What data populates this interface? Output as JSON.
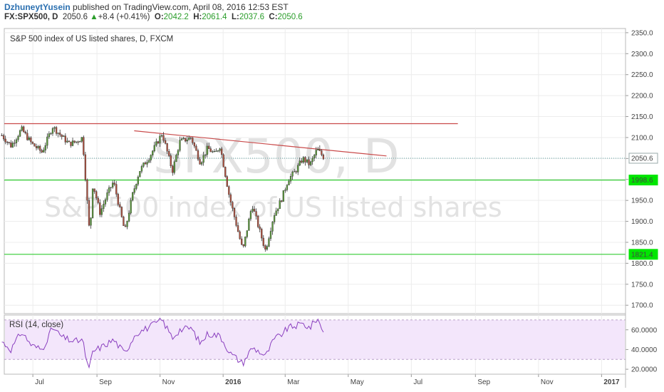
{
  "header": {
    "author": "DzhuneytYusein",
    "published": "published on TradingView.com, April 08, 2016 12:53 EST",
    "symbol": "FX:SPX500, D",
    "last": "2050.6",
    "change": "+8.4 (+0.41%)",
    "o_label": "O:",
    "o": "2042.2",
    "h_label": "H:",
    "h": "2061.4",
    "l_label": "L:",
    "l": "2037.6",
    "c_label": "C:",
    "c": "2050.6"
  },
  "chart_data": [
    {
      "type": "candlestick",
      "title": "S&P 500 index of US listed shares, D, FXCM",
      "watermark_line1": "SPX500, D",
      "watermark_line2": "S&P 500 index of US listed shares",
      "ylim": [
        1680,
        2360
      ],
      "yticks": [
        "2350.0",
        "2300.0",
        "2250.0",
        "2200.0",
        "2150.0",
        "2100.0",
        "2050.0",
        "2000.0",
        "1950.0",
        "1900.0",
        "1850.0",
        "1800.0",
        "1750.0",
        "1700.0"
      ],
      "x_labels": [
        "Jul",
        "Sep",
        "Nov",
        "2016",
        "Mar",
        "May",
        "Jul",
        "Sep",
        "Nov",
        "2017"
      ],
      "price_labels": [
        {
          "value": 2050.6,
          "label": "2050.6",
          "color": "#ffffff"
        },
        {
          "value": 1998.6,
          "label": "1998.6",
          "color": "#00e600"
        },
        {
          "value": 1821.4,
          "label": "1821.4",
          "color": "#00e600"
        }
      ],
      "horizontal_lines": [
        {
          "value": 1998.6,
          "color": "#33cc33"
        },
        {
          "value": 1821.4,
          "color": "#33cc33"
        },
        {
          "value": 2133,
          "color": "#c94a4a",
          "from": "2015-06-01",
          "to": "2016-08-15"
        }
      ],
      "trend_line": {
        "from_date": "2015-10-07",
        "from_value": 2116,
        "to_date": "2016-06-07",
        "to_value": 2056,
        "color": "#c94a4a"
      },
      "price_path": [
        [
          "2015-06-01",
          2105
        ],
        [
          "2015-06-10",
          2080
        ],
        [
          "2015-06-20",
          2120
        ],
        [
          "2015-06-30",
          2085
        ],
        [
          "2015-07-10",
          2065
        ],
        [
          "2015-07-20",
          2126
        ],
        [
          "2015-07-30",
          2100
        ],
        [
          "2015-08-05",
          2085
        ],
        [
          "2015-08-12",
          2090
        ],
        [
          "2015-08-18",
          2100
        ],
        [
          "2015-08-21",
          2000
        ],
        [
          "2015-08-25",
          1865
        ],
        [
          "2015-08-28",
          1990
        ],
        [
          "2015-09-04",
          1920
        ],
        [
          "2015-09-11",
          1965
        ],
        [
          "2015-09-17",
          1995
        ],
        [
          "2015-09-28",
          1875
        ],
        [
          "2015-10-05",
          1960
        ],
        [
          "2015-10-12",
          2020
        ],
        [
          "2015-10-22",
          2055
        ],
        [
          "2015-11-03",
          2110
        ],
        [
          "2015-11-13",
          2020
        ],
        [
          "2015-11-20",
          2090
        ],
        [
          "2015-12-01",
          2100
        ],
        [
          "2015-12-10",
          2040
        ],
        [
          "2015-12-17",
          2075
        ],
        [
          "2015-12-24",
          2060
        ],
        [
          "2015-12-29",
          2080
        ],
        [
          "2016-01-07",
          1960
        ],
        [
          "2016-01-15",
          1880
        ],
        [
          "2016-01-20",
          1830
        ],
        [
          "2016-01-29",
          1940
        ],
        [
          "2016-02-05",
          1880
        ],
        [
          "2016-02-11",
          1830
        ],
        [
          "2016-02-19",
          1915
        ],
        [
          "2016-02-26",
          1950
        ],
        [
          "2016-03-04",
          2000
        ],
        [
          "2016-03-11",
          2020
        ],
        [
          "2016-03-18",
          2050
        ],
        [
          "2016-03-25",
          2035
        ],
        [
          "2016-04-01",
          2072
        ],
        [
          "2016-04-08",
          2050.6
        ]
      ]
    },
    {
      "type": "line",
      "title": "RSI (14, close)",
      "ylim": [
        15,
        75
      ],
      "yticks": [
        "60.0000",
        "40.0000",
        "20.0000"
      ],
      "band": [
        30,
        70
      ],
      "series": [
        {
          "name": "RSI (14, close)",
          "color": "#8a3fbf",
          "points": [
            [
              "2015-06-01",
              48
            ],
            [
              "2015-06-10",
              40
            ],
            [
              "2015-06-20",
              58
            ],
            [
              "2015-06-30",
              44
            ],
            [
              "2015-07-10",
              40
            ],
            [
              "2015-07-20",
              62
            ],
            [
              "2015-07-30",
              52
            ],
            [
              "2015-08-10",
              48
            ],
            [
              "2015-08-18",
              50
            ],
            [
              "2015-08-24",
              18
            ],
            [
              "2015-08-28",
              38
            ],
            [
              "2015-09-08",
              44
            ],
            [
              "2015-09-17",
              50
            ],
            [
              "2015-09-28",
              36
            ],
            [
              "2015-10-08",
              56
            ],
            [
              "2015-10-20",
              62
            ],
            [
              "2015-11-03",
              70
            ],
            [
              "2015-11-13",
              52
            ],
            [
              "2015-11-20",
              60
            ],
            [
              "2015-12-01",
              62
            ],
            [
              "2015-12-10",
              46
            ],
            [
              "2015-12-17",
              56
            ],
            [
              "2015-12-29",
              54
            ],
            [
              "2016-01-08",
              36
            ],
            [
              "2016-01-20",
              26
            ],
            [
              "2016-01-29",
              42
            ],
            [
              "2016-02-05",
              38
            ],
            [
              "2016-02-11",
              33
            ],
            [
              "2016-02-19",
              50
            ],
            [
              "2016-02-26",
              55
            ],
            [
              "2016-03-04",
              62
            ],
            [
              "2016-03-18",
              66
            ],
            [
              "2016-03-25",
              62
            ],
            [
              "2016-04-01",
              72
            ],
            [
              "2016-04-06",
              60
            ],
            [
              "2016-04-08",
              58
            ]
          ]
        }
      ]
    }
  ]
}
